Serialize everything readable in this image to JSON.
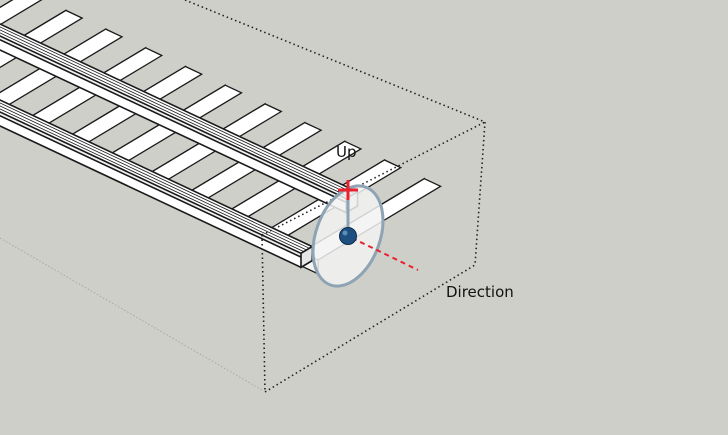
{
  "background_color": "#cfcfca",
  "labels": {
    "up": "Up",
    "direction": "Direction"
  },
  "colors": {
    "rail_outline": "#1a1a1a",
    "rail_fill": "#ffffff",
    "bounding_box": "#222222",
    "guide_line": "#a8a8a4",
    "placement_disc_fill": "#f2f2f2",
    "placement_disc_stroke": "#8ea3b3",
    "up_marker": "#e8222e",
    "origin_point": "#1d4f80",
    "direction_axis": "#e8222e"
  },
  "icons": {
    "up_marker": "red-cross-icon",
    "origin": "origin-point-icon"
  }
}
